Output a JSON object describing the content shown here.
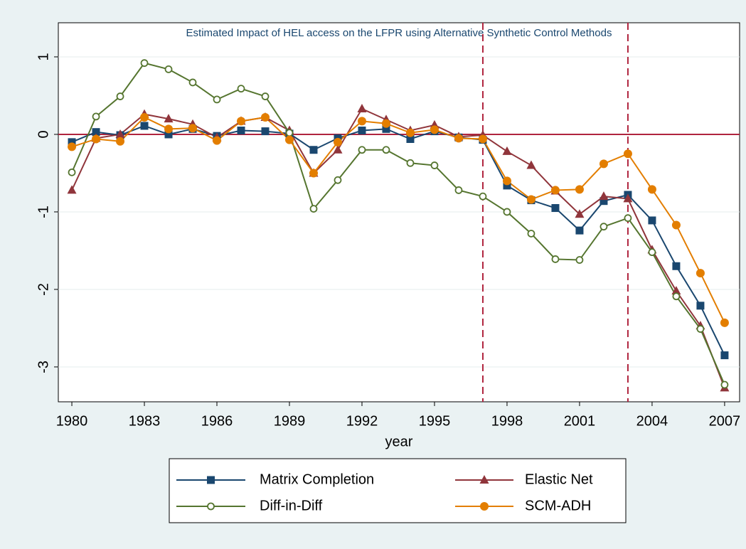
{
  "chart_data": {
    "type": "line",
    "title": "Estimated Impact of HEL access on the LFPR using Alternative Synthetic Control Methods",
    "x_label": "year",
    "x": [
      1980,
      1981,
      1982,
      1983,
      1984,
      1985,
      1986,
      1987,
      1988,
      1989,
      1990,
      1991,
      1992,
      1993,
      1994,
      1995,
      1996,
      1997,
      1998,
      1999,
      2000,
      2001,
      2002,
      2003,
      2004,
      2005,
      2006,
      2007
    ],
    "series": [
      {
        "name": "Matrix Completion",
        "color": "#1a476f",
        "marker": "square",
        "values": [
          -0.1,
          0.03,
          -0.01,
          0.11,
          0.0,
          0.07,
          -0.02,
          0.05,
          0.04,
          0.01,
          -0.2,
          -0.05,
          0.05,
          0.07,
          -0.06,
          0.04,
          -0.04,
          -0.07,
          -0.66,
          -0.85,
          -0.95,
          -1.24,
          -0.86,
          -0.78,
          -1.11,
          -1.7,
          -2.21,
          -2.85
        ]
      },
      {
        "name": "Elastic Net",
        "color": "#90353b",
        "marker": "triangle",
        "values": [
          -0.72,
          -0.05,
          0.0,
          0.26,
          0.2,
          0.13,
          -0.04,
          0.17,
          0.22,
          0.05,
          -0.5,
          -0.2,
          0.33,
          0.19,
          0.05,
          0.12,
          -0.03,
          -0.01,
          -0.22,
          -0.4,
          -0.73,
          -1.03,
          -0.8,
          -0.83,
          -1.49,
          -2.02,
          -2.47,
          -3.27
        ]
      },
      {
        "name": "Diff-in-Diff",
        "color": "#55752f",
        "marker": "hollow-circle",
        "values": [
          -0.49,
          0.23,
          0.49,
          0.92,
          0.84,
          0.67,
          0.45,
          0.59,
          0.49,
          0.02,
          -0.96,
          -0.59,
          -0.2,
          -0.2,
          -0.37,
          -0.4,
          -0.72,
          -0.8,
          -1.0,
          -1.28,
          -1.61,
          -1.62,
          -1.19,
          -1.08,
          -1.52,
          -2.09,
          -2.51,
          -3.23
        ]
      },
      {
        "name": "SCM-ADH",
        "color": "#e37e00",
        "marker": "circle",
        "values": [
          -0.16,
          -0.06,
          -0.09,
          0.22,
          0.07,
          0.08,
          -0.08,
          0.17,
          0.22,
          -0.07,
          -0.5,
          -0.1,
          0.17,
          0.14,
          0.02,
          0.06,
          -0.05,
          -0.06,
          -0.6,
          -0.84,
          -0.72,
          -0.71,
          -0.38,
          -0.25,
          -0.71,
          -1.17,
          -1.79,
          -2.43
        ]
      }
    ],
    "xlim": [
      1979.44,
      2007.62
    ],
    "xticks": [
      1980,
      1983,
      1986,
      1989,
      1992,
      1995,
      1998,
      2001,
      2004,
      2007
    ],
    "ylim": [
      -3.45,
      1.44
    ],
    "yticks": [
      -3,
      -2,
      -1,
      0,
      1
    ],
    "grid": true,
    "xlines": [
      1997,
      2003
    ],
    "ylines": [
      0
    ],
    "reference_line_color": "#b0243e"
  }
}
